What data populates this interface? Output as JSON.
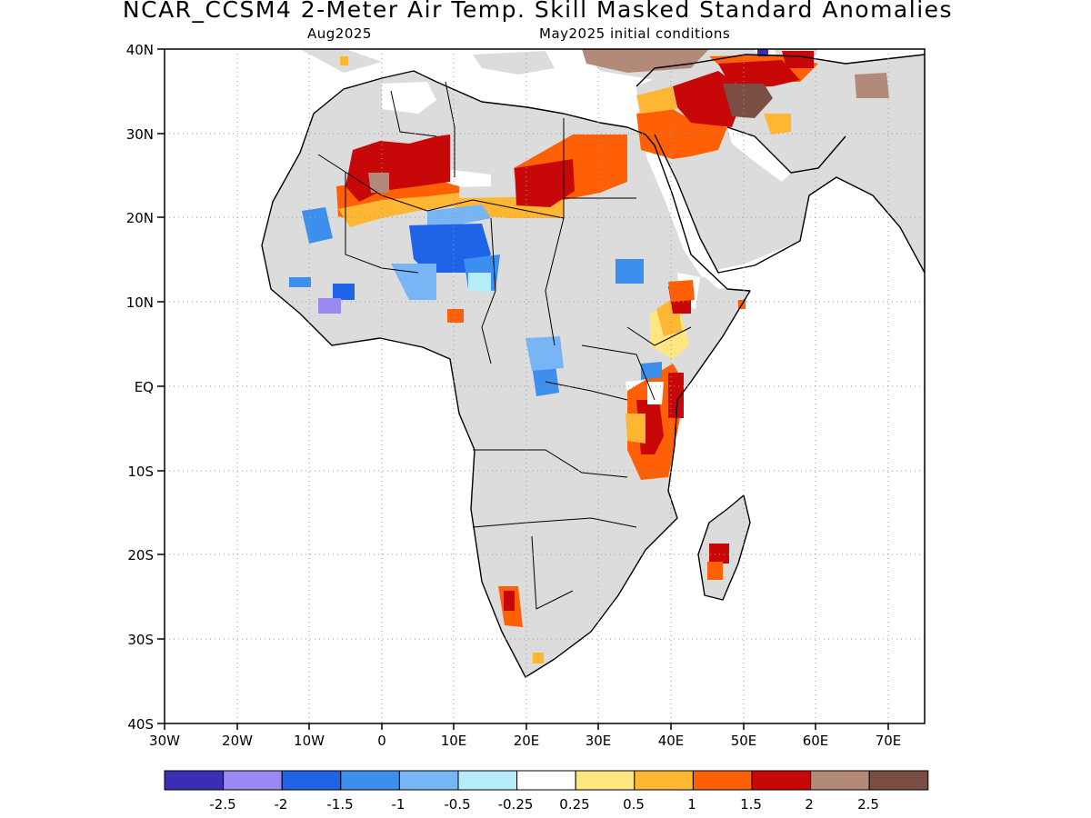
{
  "title": "NCAR_CCSM4 2-Meter Air Temp. Skill Masked Standard Anomalies",
  "subtitle_left": "Aug2025",
  "subtitle_right": "May2025 initial conditions",
  "map": {
    "lon_range": [
      -30,
      75
    ],
    "lat_range": [
      -40,
      40
    ],
    "grid": "dotted",
    "mask_color": "#dcdcdc",
    "x_ticks": [
      "30W",
      "20W",
      "10W",
      "0",
      "10E",
      "20E",
      "30E",
      "40E",
      "50E",
      "60E",
      "70E"
    ],
    "y_ticks": [
      "40N",
      "30N",
      "20N",
      "10N",
      "EQ",
      "10S",
      "20S",
      "30S",
      "40S"
    ]
  },
  "colorbar": {
    "colors": [
      "#3a2fb3",
      "#9b88f2",
      "#1f63e6",
      "#3c8fec",
      "#78b5f5",
      "#b4ecf8",
      "#ffffff",
      "#ffe680",
      "#ffb733",
      "#ff5f05",
      "#c80808",
      "#b38a7a",
      "#7a4e42"
    ],
    "labels": [
      "-2.5",
      "-2",
      "-1.5",
      "-1",
      "-0.5",
      "-0.25",
      "0.25",
      "0.5",
      "1",
      "1.5",
      "2",
      "2.5"
    ]
  },
  "anomalies": [
    {
      "region": "Sahara Mauritania-Mali",
      "color": "#c80808"
    },
    {
      "region": "Sahara Libya-Egypt",
      "color": "#c80808"
    },
    {
      "region": "Egypt-Sudan",
      "color": "#ff5f05"
    },
    {
      "region": "Eastern Mediterranean",
      "color": "#ff5f05"
    },
    {
      "region": "Iraq-Iran",
      "color": "#c80808"
    },
    {
      "region": "Iran plateau",
      "color": "#b38a7a"
    },
    {
      "region": "Niger-Chad Sahel",
      "color": "#3c8fec"
    },
    {
      "region": "West Africa coast",
      "color": "#9b88f2"
    },
    {
      "region": "Ethiopia",
      "color": "#ffb733"
    },
    {
      "region": "Kenya-Tanzania",
      "color": "#ff5f05"
    },
    {
      "region": "Madagascar",
      "color": "#c80808"
    },
    {
      "region": "Namibia-Botswana",
      "color": "#ff5f05"
    },
    {
      "region": "Central Africa",
      "color": "#78b5f5"
    }
  ]
}
